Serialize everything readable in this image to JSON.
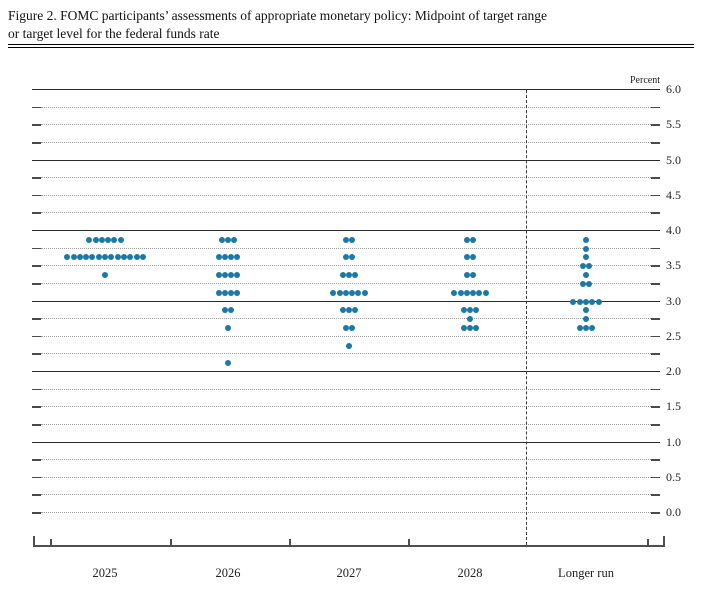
{
  "figure": {
    "title_line1": "Figure 2. FOMC participants’ assessments of appropriate monetary policy: Midpoint of target range",
    "title_line2": "or target level for the federal funds rate"
  },
  "chart_data": {
    "type": "scatter",
    "title": "Figure 2. FOMC participants’ assessments of appropriate monetary policy: Midpoint of target range or target level for the federal funds rate",
    "ylabel": "Percent",
    "xlabel": "",
    "ylim": [
      0.0,
      6.0
    ],
    "grid": "solid lines at integers 1-6; dotted lines every 0.25 including 0.0",
    "legend_position": "none",
    "y_tick_labels": [
      "6.0",
      "5.5",
      "5.0",
      "4.5",
      "4.0",
      "3.5",
      "3.0",
      "2.5",
      "2.0",
      "1.5",
      "1.0",
      "0.5",
      "0.0"
    ],
    "solid_gridline_values": [
      6.0,
      5.0,
      4.0,
      3.0,
      2.0,
      1.0
    ],
    "dotted_gridline_step": 0.25,
    "categories": [
      "2025",
      "2026",
      "2027",
      "2028",
      "Longer run"
    ],
    "separator_before_category": "Longer run",
    "dot_color": "#1b79a7",
    "series": [
      {
        "category": "2025",
        "distribution": {
          "3.875": 6,
          "3.625": 13,
          "3.375": 1
        }
      },
      {
        "category": "2026",
        "distribution": {
          "3.875": 3,
          "3.625": 4,
          "3.375": 4,
          "3.125": 4,
          "2.875": 2,
          "2.625": 1,
          "2.125": 1
        }
      },
      {
        "category": "2027",
        "distribution": {
          "3.875": 2,
          "3.625": 2,
          "3.375": 3,
          "3.125": 6,
          "2.875": 3,
          "2.625": 2,
          "2.375": 1
        }
      },
      {
        "category": "2028",
        "distribution": {
          "3.875": 2,
          "3.625": 2,
          "3.375": 2,
          "3.125": 6,
          "2.875": 3,
          "2.75": 1,
          "2.625": 3
        }
      },
      {
        "category": "Longer run",
        "distribution": {
          "3.875": 1,
          "3.75": 1,
          "3.625": 1,
          "3.5": 2,
          "3.375": 1,
          "3.25": 2,
          "3.0": 5,
          "2.875": 1,
          "2.75": 1,
          "2.625": 3
        }
      }
    ]
  }
}
